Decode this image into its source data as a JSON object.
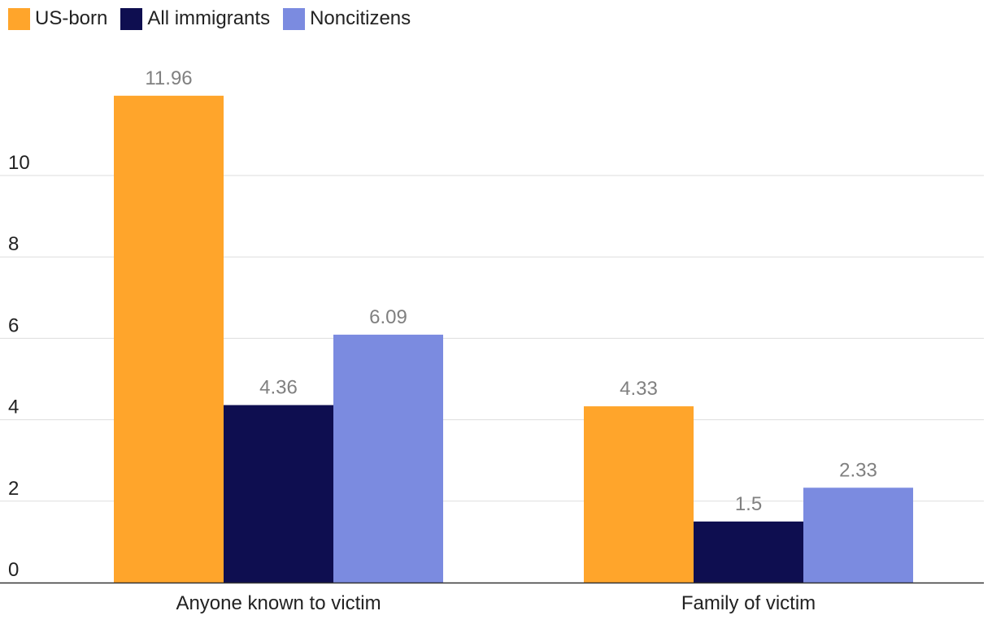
{
  "chart_data": {
    "type": "bar",
    "title": "",
    "xlabel": "",
    "ylabel": "",
    "ylim": [
      0,
      12
    ],
    "yticks": [
      0,
      2,
      4,
      6,
      8,
      10
    ],
    "grid": true,
    "legend_position": "top-left",
    "categories": [
      "Anyone known to victim",
      "Family of victim"
    ],
    "series": [
      {
        "name": "US-born",
        "color": "#FFA52B",
        "values": [
          11.96,
          4.33
        ],
        "labels": [
          "11.96",
          "4.33"
        ]
      },
      {
        "name": "All immigrants",
        "color": "#0E0E50",
        "values": [
          4.36,
          1.5
        ],
        "labels": [
          "4.36",
          "1.5"
        ]
      },
      {
        "name": "Noncitizens",
        "color": "#7B8BE0",
        "values": [
          6.09,
          2.33
        ],
        "labels": [
          "6.09",
          "2.33"
        ]
      }
    ]
  }
}
